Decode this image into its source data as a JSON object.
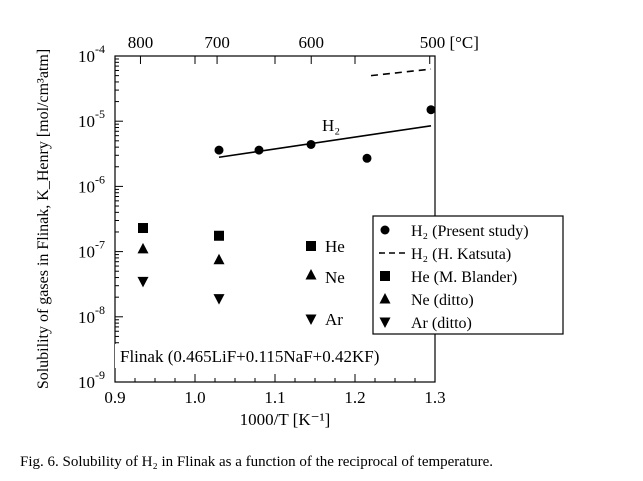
{
  "chart_data": {
    "type": "scatter",
    "xlabel": "1000/T [K⁻¹]",
    "ylabel": "Solubility of gases in Flinak, K_Henry [mol/cm³atm]",
    "xlim": [
      0.9,
      1.3
    ],
    "ylim": [
      1e-09,
      0.0001
    ],
    "y_scale": "log",
    "x_ticks": [
      "0.9",
      "1.0",
      "1.1",
      "1.2",
      "1.3"
    ],
    "y_ticks": [
      {
        "value": 0.0001,
        "base": "10",
        "exp": "-4"
      },
      {
        "value": 1e-05,
        "base": "10",
        "exp": "-5"
      },
      {
        "value": 1e-06,
        "base": "10",
        "exp": "-6"
      },
      {
        "value": 1e-07,
        "base": "10",
        "exp": "-7"
      },
      {
        "value": 1e-08,
        "base": "10",
        "exp": "-8"
      },
      {
        "value": 1e-09,
        "base": "10",
        "exp": "-9"
      }
    ],
    "top_axis": {
      "ticks": [
        {
          "label": "800",
          "temperature_c": 800
        },
        {
          "label": "700",
          "temperature_c": 700
        },
        {
          "label": "600",
          "temperature_c": 600
        },
        {
          "label": "500 [°C]",
          "temperature_c": 500
        }
      ]
    },
    "series": [
      {
        "name": "H₂ (Present study)",
        "marker": "circle",
        "points": [
          [
            1.03,
            3.6e-06
          ],
          [
            1.08,
            3.6e-06
          ],
          [
            1.145,
            4.4e-06
          ],
          [
            1.215,
            2.7e-06
          ],
          [
            1.295,
            1.5e-05
          ]
        ]
      },
      {
        "name": "H₂ (H. Katsuta)",
        "marker": "dashed-line",
        "points": [
          [
            1.22,
            5e-05
          ],
          [
            1.295,
            6.3e-05
          ]
        ]
      },
      {
        "name": "He (M. Blander)",
        "marker": "square",
        "points": [
          [
            0.935,
            2.3e-07
          ],
          [
            1.03,
            1.75e-07
          ]
        ]
      },
      {
        "name": "Ne (ditto)",
        "marker": "triangle-up",
        "points": [
          [
            0.935,
            1.1e-07
          ],
          [
            1.03,
            7.5e-08
          ]
        ]
      },
      {
        "name": "Ar (ditto)",
        "marker": "triangle-down",
        "points": [
          [
            0.935,
            3.5e-08
          ],
          [
            1.03,
            1.9e-08
          ]
        ]
      }
    ],
    "fit_line": {
      "points": [
        [
          1.03,
          2.8e-06
        ],
        [
          1.295,
          8.5e-06
        ]
      ]
    },
    "annotations": {
      "h2_label": "H₂",
      "he_label": "He",
      "ne_label": "Ne",
      "ar_label": "Ar",
      "flinak_label": "Flinak (0.465LiF+0.115NaF+0.42KF)"
    },
    "legend_position": "right-middle",
    "grid": false
  },
  "caption": "Fig. 6. Solubility of H₂ in Flinak as a function of the reciprocal of temperature."
}
